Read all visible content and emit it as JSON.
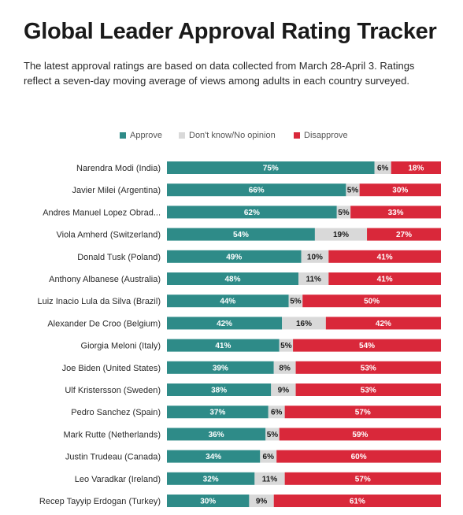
{
  "title": "Global Leader Approval Rating Tracker",
  "subtitle": "The latest approval ratings are based on data collected from March 28-April 3. Ratings reflect a seven-day moving average of views among adults in each country surveyed.",
  "colors": {
    "approve": "#2e8b88",
    "dont_know": "#d9d9d9",
    "disapprove": "#d9283a"
  },
  "chart_data": {
    "type": "bar",
    "orientation": "horizontal",
    "stacked": true,
    "legend_position": "top",
    "grid": false,
    "title": "Global Leader Approval Rating Tracker",
    "categories": [
      "Narendra Modi (India)",
      "Javier Milei (Argentina)",
      "Andres Manuel Lopez Obrad...",
      "Viola Amherd (Switzerland)",
      "Donald Tusk (Poland)",
      "Anthony Albanese (Australia)",
      "Luiz Inacio Lula da Silva (Brazil)",
      "Alexander De Croo (Belgium)",
      "Giorgia Meloni (Italy)",
      "Joe Biden (United States)",
      "Ulf Kristersson (Sweden)",
      "Pedro Sanchez (Spain)",
      "Mark Rutte (Netherlands)",
      "Justin Trudeau (Canada)",
      "Leo Varadkar (Ireland)",
      "Recep Tayyip Erdogan (Turkey)"
    ],
    "series": [
      {
        "name": "Approve",
        "values": [
          75,
          66,
          62,
          54,
          49,
          48,
          44,
          42,
          41,
          39,
          38,
          37,
          36,
          34,
          32,
          30
        ]
      },
      {
        "name": "Don't know/No opinion",
        "values": [
          6,
          5,
          5,
          19,
          10,
          11,
          5,
          16,
          5,
          8,
          9,
          6,
          5,
          6,
          11,
          9
        ]
      },
      {
        "name": "Disapprove",
        "values": [
          18,
          30,
          33,
          27,
          41,
          41,
          50,
          42,
          54,
          53,
          53,
          57,
          59,
          60,
          57,
          61
        ]
      }
    ],
    "xlim": [
      0,
      100
    ]
  }
}
